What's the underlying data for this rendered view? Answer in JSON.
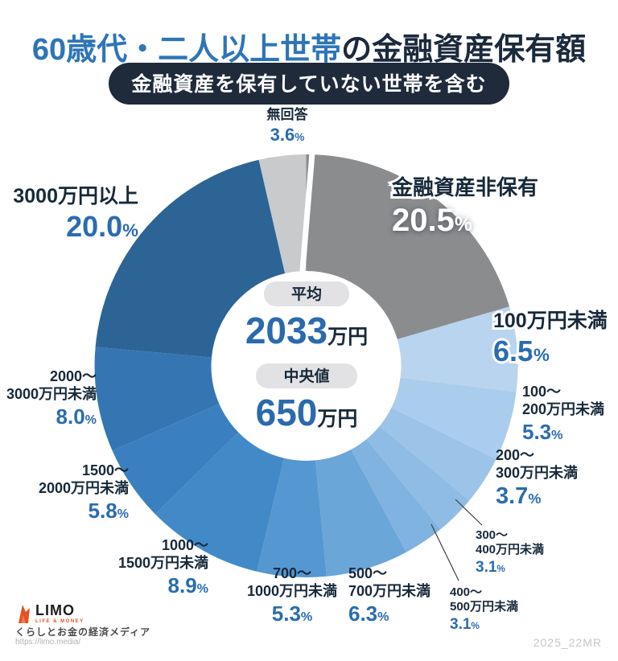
{
  "title": {
    "highlight": "60歳代・二人以上世帯",
    "rest": "の金融資産保有額"
  },
  "subtitle": "金融資産を保有していない世帯を含む",
  "center": {
    "average_label": "平均",
    "average_value": "2033",
    "average_unit": "万円",
    "median_label": "中央値",
    "median_value": "650",
    "median_unit": "万円"
  },
  "footer": {
    "brand": "LIMO",
    "brand_sub": "LIFE & MONEY",
    "tagline": "くらしとお金の経済メディア",
    "url": "https://limo.media/"
  },
  "watermark": "2025_22MR",
  "colors": {
    "title_highlight": "#2e75b8",
    "navy_text": "#17293a",
    "percent_blue": "#2a6cb0",
    "subtitle_bg": "#1f2b3b",
    "brand_orange": "#e8501e",
    "pill_gray": "#e2e2e4"
  },
  "chart_data": {
    "type": "pie",
    "donut": true,
    "start_angle_deg": -90,
    "direction": "clockwise",
    "unit": "%",
    "title": "60歳代・二人以上世帯の金融資産保有額",
    "subtitle": "金融資産を保有していない世帯を含む",
    "center_stats": {
      "average_label": "平均",
      "average": "2033万円",
      "median_label": "中央値",
      "median": "650万円"
    },
    "legend_position": "around-donut",
    "segments": [
      {
        "label": "金融資産非保有",
        "label_lines": [
          "金融資産非保有"
        ],
        "pct": 20.5,
        "color": "#8b8c8e"
      },
      {
        "label": "100万円未満",
        "label_lines": [
          "100万円未満"
        ],
        "pct": 6.5,
        "color": "#b9d4ee"
      },
      {
        "label": "100〜200万円未満",
        "label_lines": [
          "100〜",
          "200万円未満"
        ],
        "pct": 5.3,
        "color": "#aacced"
      },
      {
        "label": "200〜300万円未満",
        "label_lines": [
          "200〜",
          "300万円未満"
        ],
        "pct": 3.7,
        "color": "#9cc4e8"
      },
      {
        "label": "300〜400万円未満",
        "label_lines": [
          "300〜",
          "400万円未満"
        ],
        "pct": 3.1,
        "color": "#8ebce4"
      },
      {
        "label": "400〜500万円未満",
        "label_lines": [
          "400〜",
          "500万円未満"
        ],
        "pct": 3.1,
        "color": "#80b3df"
      },
      {
        "label": "500〜700万円未満",
        "label_lines": [
          "500〜",
          "700万円未満"
        ],
        "pct": 6.3,
        "color": "#6ba6d9"
      },
      {
        "label": "700〜1000万円未満",
        "label_lines": [
          "700〜",
          "1000万円未満"
        ],
        "pct": 5.3,
        "color": "#5598d1"
      },
      {
        "label": "1000〜1500万円未満",
        "label_lines": [
          "1000〜",
          "1500万円未満"
        ],
        "pct": 8.9,
        "color": "#4289c8"
      },
      {
        "label": "1500〜2000万円未満",
        "label_lines": [
          "1500〜",
          "2000万円未満"
        ],
        "pct": 5.8,
        "color": "#3a80c0"
      },
      {
        "label": "2000〜3000万円未満",
        "label_lines": [
          "2000〜",
          "3000万円未満"
        ],
        "pct": 8.0,
        "color": "#3576b2"
      },
      {
        "label": "3000万円以上",
        "label_lines": [
          "3000万円以上"
        ],
        "pct": 20.0,
        "color": "#2c6496"
      },
      {
        "label": "無回答",
        "label_lines": [
          "無回答"
        ],
        "pct": 3.6,
        "color": "#c9cacc"
      }
    ]
  }
}
